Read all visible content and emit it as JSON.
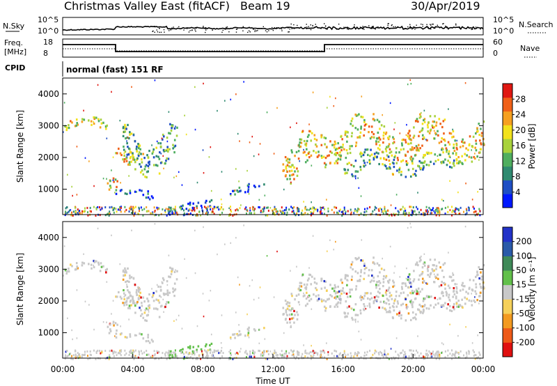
{
  "header": {
    "station": "Christmas Valley East (fitACF)",
    "beam": "Beam 19",
    "date": "30/Apr/2019"
  },
  "ancillary": {
    "nsky_label": "N.Sky",
    "nsearch_label": "N.Search",
    "freq_label_line1": "Freq.",
    "freq_label_line2": "[MHz]",
    "nave_label": "Nave",
    "cpid_label": "CPID",
    "cpid_value": "normal (fast) 151 RF",
    "noise_ticks": [
      "10^5",
      "10^0"
    ],
    "freq_ticks": [
      "18",
      "8"
    ],
    "nave_ticks": [
      "60",
      "0"
    ]
  },
  "chart_data": [
    {
      "type": "heatmap",
      "name": "power",
      "ylabel": "Slant Range [km]",
      "xlim": [
        0,
        24
      ],
      "ylim": [
        200,
        4500
      ],
      "yticks": [
        1000,
        2000,
        3000,
        4000
      ],
      "colorbar": {
        "label": "Power [dB]",
        "ticks": [
          "4",
          "8",
          "12",
          "16",
          "20",
          "24",
          "28"
        ],
        "colors": [
          "#0018ff",
          "#1f4fc4",
          "#2f8a70",
          "#4fae5f",
          "#a8d23c",
          "#f2e21c",
          "#f6a020",
          "#f06018",
          "#e01812"
        ]
      },
      "echo_regions": [
        {
          "t0": 0.0,
          "t1": 2.7,
          "r": [
            2850,
            3300
          ],
          "level": "high"
        },
        {
          "t0": 2.5,
          "t1": 3.1,
          "r": [
            800,
            1450
          ],
          "level": "high"
        },
        {
          "t0": 2.9,
          "t1": 4.6,
          "r": [
            1800,
            2500
          ],
          "level": "high"
        },
        {
          "t0": 3.4,
          "t1": 6.5,
          "r": [
            1400,
            3100
          ],
          "level": "mid"
        },
        {
          "t0": 3.0,
          "t1": 5.2,
          "r": [
            700,
            1050
          ],
          "level": "low"
        },
        {
          "t0": 6.0,
          "t1": 8.5,
          "r": [
            200,
            700
          ],
          "level": "low"
        },
        {
          "t0": 9.5,
          "t1": 11.5,
          "r": [
            800,
            1200
          ],
          "level": "low"
        },
        {
          "t0": 12.5,
          "t1": 15.0,
          "r": [
            1200,
            2900
          ],
          "level": "high"
        },
        {
          "t0": 15.0,
          "t1": 24.0,
          "r": [
            1800,
            3400
          ],
          "level": "high"
        },
        {
          "t0": 16.0,
          "t1": 22.5,
          "r": [
            1400,
            2300
          ],
          "level": "mid"
        }
      ]
    },
    {
      "type": "heatmap",
      "name": "velocity",
      "xlabel": "Time UT",
      "ylabel": "Slant Range [km]",
      "xlim": [
        0,
        24
      ],
      "ylim": [
        200,
        4500
      ],
      "xticks": [
        "00:00",
        "04:00",
        "08:00",
        "12:00",
        "16:00",
        "20:00",
        "00:00"
      ],
      "yticks": [
        1000,
        2000,
        3000,
        4000
      ],
      "colorbar": {
        "label": "Velocity [m s⁻¹]",
        "ticks": [
          "200",
          "100",
          "50",
          "15",
          "-15",
          "-50",
          "-100",
          "-200"
        ],
        "colors": [
          "#2232c8",
          "#2a5aa8",
          "#3f8a58",
          "#62c04a",
          "#c8c8c8",
          "#f5d05a",
          "#f39a20",
          "#ee5a18",
          "#e01010"
        ]
      },
      "ground_scatter_color": "#c8c8c8"
    }
  ]
}
